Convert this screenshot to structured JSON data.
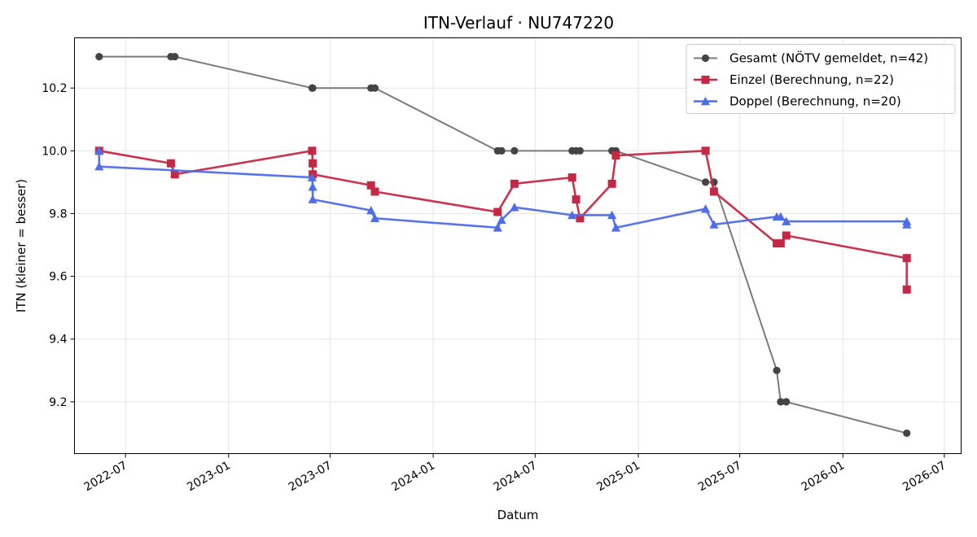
{
  "chart_data": {
    "type": "line",
    "title": "ITN-Verlauf · NU747220",
    "xlabel": "Datum",
    "ylabel": "ITN  (kleiner = besser)",
    "x_type": "date",
    "xlim": [
      "2022-04-01",
      "2026-07-31"
    ],
    "ylim": [
      9.035,
      10.36
    ],
    "x_ticks": [
      "2022-07-01",
      "2023-01-01",
      "2023-07-01",
      "2024-01-01",
      "2024-07-01",
      "2025-01-01",
      "2025-07-01",
      "2026-01-01",
      "2026-07-01"
    ],
    "x_tick_labels": [
      "2022-07",
      "2023-01",
      "2023-07",
      "2024-01",
      "2024-07",
      "2025-01",
      "2025-07",
      "2026-01",
      "2026-07"
    ],
    "y_ticks": [
      9.2,
      9.4,
      9.6,
      9.8,
      10.0,
      10.2
    ],
    "y_tick_labels": [
      "9.2",
      "9.4",
      "9.6",
      "9.8",
      "10.0",
      "10.2"
    ],
    "grid": true,
    "legend_position": "top-right",
    "series": [
      {
        "name": "Gesamt (NÖTV gemeldet, n=42)",
        "color": "#7a7a7a",
        "marker_color": "#444444",
        "marker": "circle",
        "points": [
          [
            "2022-05-15",
            10.3
          ],
          [
            "2022-09-20",
            10.3
          ],
          [
            "2022-09-27",
            10.3
          ],
          [
            "2023-05-30",
            10.2
          ],
          [
            "2023-05-31",
            10.2
          ],
          [
            "2023-09-12",
            10.2
          ],
          [
            "2023-09-19",
            10.2
          ],
          [
            "2024-04-25",
            10.0
          ],
          [
            "2024-05-02",
            10.0
          ],
          [
            "2024-05-25",
            10.0
          ],
          [
            "2024-09-05",
            10.0
          ],
          [
            "2024-09-12",
            10.0
          ],
          [
            "2024-09-19",
            10.0
          ],
          [
            "2024-11-15",
            10.0
          ],
          [
            "2024-11-22",
            10.0
          ],
          [
            "2025-05-01",
            9.9
          ],
          [
            "2025-05-16",
            9.9
          ],
          [
            "2025-09-05",
            9.3
          ],
          [
            "2025-09-12",
            9.2
          ],
          [
            "2025-09-22",
            9.2
          ],
          [
            "2026-04-25",
            9.1
          ]
        ]
      },
      {
        "name": "Einzel (Berechnung, n=22)",
        "color": "#c62844",
        "marker": "square",
        "points": [
          [
            "2022-05-15",
            10.0
          ],
          [
            "2022-09-20",
            9.96
          ],
          [
            "2022-09-27",
            9.925
          ],
          [
            "2023-05-30",
            10.0
          ],
          [
            "2023-05-31",
            9.96
          ],
          [
            "2023-05-31",
            9.925
          ],
          [
            "2023-09-12",
            9.89
          ],
          [
            "2023-09-19",
            9.87
          ],
          [
            "2024-04-25",
            9.805
          ],
          [
            "2024-05-25",
            9.895
          ],
          [
            "2024-09-05",
            9.915
          ],
          [
            "2024-09-12",
            9.845
          ],
          [
            "2024-09-19",
            9.785
          ],
          [
            "2024-11-15",
            9.895
          ],
          [
            "2024-11-22",
            9.985
          ],
          [
            "2025-05-01",
            10.0
          ],
          [
            "2025-05-16",
            9.87
          ],
          [
            "2025-09-05",
            9.705
          ],
          [
            "2025-09-12",
            9.705
          ],
          [
            "2025-09-22",
            9.73
          ],
          [
            "2026-04-25",
            9.658
          ],
          [
            "2026-04-25",
            9.558
          ]
        ]
      },
      {
        "name": "Doppel (Berechnung, n=20)",
        "color": "#4f6de8",
        "marker": "triangle",
        "points": [
          [
            "2022-05-15",
            10.0
          ],
          [
            "2022-05-15",
            9.95
          ],
          [
            "2023-05-30",
            9.915
          ],
          [
            "2023-05-31",
            9.885
          ],
          [
            "2023-05-31",
            9.845
          ],
          [
            "2023-09-12",
            9.81
          ],
          [
            "2023-09-19",
            9.785
          ],
          [
            "2024-04-25",
            9.755
          ],
          [
            "2024-05-02",
            9.78
          ],
          [
            "2024-05-25",
            9.82
          ],
          [
            "2024-09-05",
            9.795
          ],
          [
            "2024-11-15",
            9.795
          ],
          [
            "2024-11-22",
            9.755
          ],
          [
            "2025-05-01",
            9.815
          ],
          [
            "2025-05-16",
            9.765
          ],
          [
            "2025-09-05",
            9.79
          ],
          [
            "2025-09-12",
            9.79
          ],
          [
            "2025-09-22",
            9.775
          ],
          [
            "2026-04-25",
            9.775
          ],
          [
            "2026-04-25",
            9.765
          ]
        ]
      }
    ]
  }
}
